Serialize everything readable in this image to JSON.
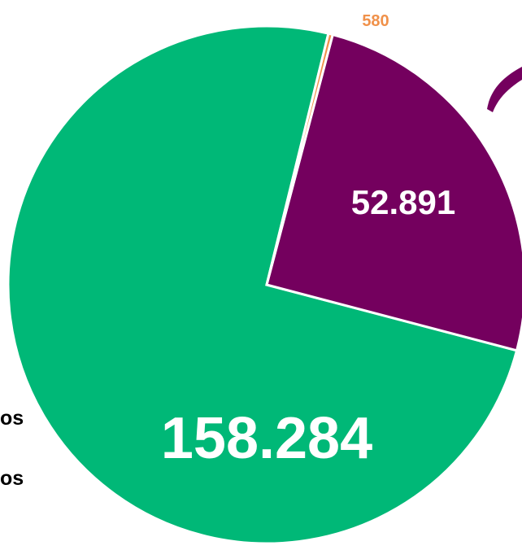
{
  "chart_data": {
    "type": "pie",
    "slices": [
      {
        "value": 158284,
        "label": "158.284",
        "color": "#00b877"
      },
      {
        "value": 52891,
        "label": "52.891",
        "color": "#74005e"
      },
      {
        "value": 580,
        "label": "580",
        "color": "#f0914a"
      }
    ],
    "legend_fragments": [
      "os",
      "os"
    ],
    "annotation_arrow_color": "#74005e"
  }
}
